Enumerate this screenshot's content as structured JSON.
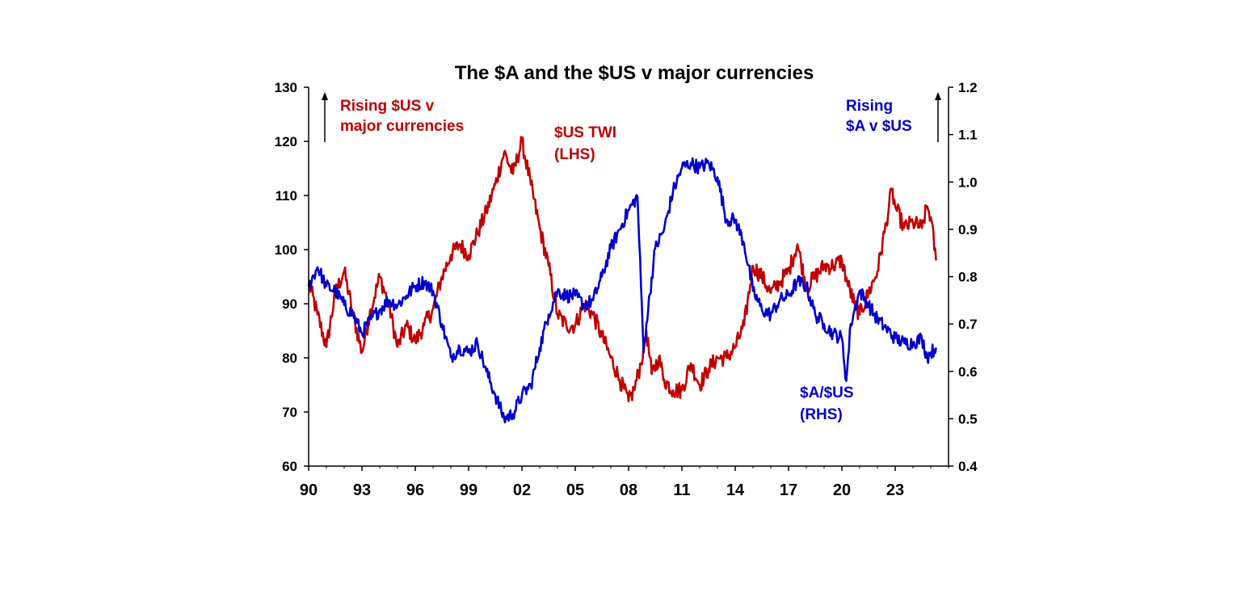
{
  "chart_data": {
    "type": "line",
    "title": "The $A and the $US v major currencies",
    "x_ticks": [
      "90",
      "93",
      "96",
      "99",
      "02",
      "05",
      "08",
      "11",
      "14",
      "17",
      "20",
      "23"
    ],
    "xlim": [
      1990,
      2026
    ],
    "y_left": {
      "ticks": [
        "130",
        "120",
        "110",
        "100",
        "90",
        "80",
        "70",
        "60"
      ],
      "ylim": [
        60,
        130
      ]
    },
    "y_right": {
      "ticks": [
        "1.2",
        "1.1",
        "1.0",
        "0.9",
        "0.8",
        "0.7",
        "0.6",
        "0.5",
        "0.4"
      ],
      "ylim": [
        0.4,
        1.2
      ]
    },
    "grid": false,
    "colors": {
      "usd_twi": "#c00000",
      "aud_usd": "#0000cc"
    },
    "annotations": {
      "rising_usd_line1": "Rising $US v",
      "rising_usd_line2": "major currencies",
      "usd_twi_line1": "$US TWI",
      "usd_twi_line2": "(LHS)",
      "rising_aud_line1": "Rising",
      "rising_aud_line2": "$A v $US",
      "aud_usd_line1": "$A/$US",
      "aud_usd_line2": "(RHS)"
    },
    "series": [
      {
        "name": "$US TWI",
        "axis": "left",
        "x": [
          1990.0,
          1990.5,
          1991.0,
          1991.5,
          1992.0,
          1992.5,
          1993.0,
          1993.5,
          1994.0,
          1994.5,
          1995.0,
          1995.5,
          1996.0,
          1996.5,
          1997.0,
          1997.5,
          1998.0,
          1998.5,
          1999.0,
          1999.5,
          2000.0,
          2000.5,
          2001.0,
          2001.5,
          2002.0,
          2002.5,
          2003.0,
          2003.5,
          2004.0,
          2004.5,
          2005.0,
          2005.5,
          2006.0,
          2006.5,
          2007.0,
          2007.5,
          2008.0,
          2008.3,
          2008.7,
          2009.0,
          2009.3,
          2009.7,
          2010.0,
          2010.5,
          2011.0,
          2011.5,
          2012.0,
          2012.5,
          2013.0,
          2013.5,
          2014.0,
          2014.5,
          2015.0,
          2015.5,
          2016.0,
          2016.5,
          2017.0,
          2017.5,
          2018.0,
          2018.5,
          2019.0,
          2019.5,
          2020.0,
          2020.3,
          2020.7,
          2021.0,
          2021.5,
          2022.0,
          2022.5,
          2022.8,
          2023.0,
          2023.5,
          2024.0,
          2024.5,
          2024.8,
          2025.0,
          2025.3
        ],
        "values": [
          94,
          88,
          82,
          92,
          96,
          88,
          81,
          89,
          95,
          90,
          82,
          86,
          83,
          86,
          89,
          95,
          99,
          101,
          99,
          103,
          107,
          112,
          118,
          114,
          120,
          112,
          104,
          97,
          88,
          86,
          86,
          90,
          88,
          84,
          80,
          76,
          72,
          74,
          79,
          85,
          77,
          80,
          76,
          74,
          74,
          79,
          75,
          78,
          80,
          80,
          82,
          86,
          97,
          95,
          92,
          94,
          96,
          101,
          93,
          95,
          97,
          97,
          98,
          94,
          90,
          88,
          92,
          96,
          105,
          111,
          108,
          104,
          105,
          104,
          108,
          106,
          98
        ]
      },
      {
        "name": "$A/$US",
        "axis": "right",
        "x": [
          1990.0,
          1990.5,
          1991.0,
          1991.5,
          1992.0,
          1992.5,
          1993.0,
          1993.5,
          1994.0,
          1994.5,
          1995.0,
          1995.5,
          1996.0,
          1996.5,
          1997.0,
          1997.5,
          1998.0,
          1998.5,
          1999.0,
          1999.5,
          2000.0,
          2000.5,
          2001.0,
          2001.5,
          2002.0,
          2002.5,
          2003.0,
          2003.5,
          2004.0,
          2004.5,
          2005.0,
          2005.5,
          2006.0,
          2006.5,
          2007.0,
          2007.5,
          2008.0,
          2008.5,
          2008.7,
          2008.85,
          2009.0,
          2009.5,
          2010.0,
          2010.5,
          2011.0,
          2011.5,
          2012.0,
          2012.5,
          2013.0,
          2013.5,
          2014.0,
          2014.5,
          2015.0,
          2015.5,
          2016.0,
          2016.5,
          2017.0,
          2017.5,
          2018.0,
          2018.5,
          2019.0,
          2019.5,
          2020.0,
          2020.25,
          2020.5,
          2021.0,
          2021.5,
          2022.0,
          2022.5,
          2023.0,
          2023.5,
          2024.0,
          2024.5,
          2024.8,
          2025.0,
          2025.3
        ],
        "values": [
          0.78,
          0.82,
          0.78,
          0.77,
          0.74,
          0.72,
          0.68,
          0.71,
          0.73,
          0.75,
          0.74,
          0.76,
          0.78,
          0.79,
          0.77,
          0.7,
          0.63,
          0.65,
          0.64,
          0.66,
          0.6,
          0.55,
          0.5,
          0.51,
          0.55,
          0.57,
          0.65,
          0.72,
          0.77,
          0.76,
          0.76,
          0.74,
          0.75,
          0.8,
          0.86,
          0.9,
          0.94,
          0.97,
          0.78,
          0.64,
          0.7,
          0.86,
          0.9,
          0.98,
          1.03,
          1.04,
          1.03,
          1.04,
          1.01,
          0.92,
          0.92,
          0.87,
          0.77,
          0.73,
          0.72,
          0.75,
          0.76,
          0.79,
          0.78,
          0.72,
          0.7,
          0.68,
          0.67,
          0.58,
          0.7,
          0.77,
          0.74,
          0.71,
          0.69,
          0.67,
          0.66,
          0.66,
          0.67,
          0.63,
          0.64,
          0.65
        ]
      }
    ]
  }
}
